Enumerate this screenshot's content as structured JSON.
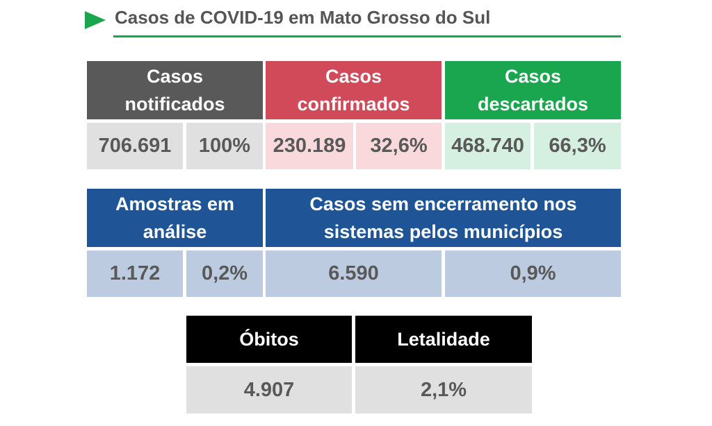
{
  "title": "Casos de COVID-19 em Mato Grosso do Sul",
  "sections": [
    {
      "headers": [
        "Casos notificados",
        "Casos confirmados",
        "Casos descartados"
      ],
      "values": [
        "706.691",
        "100%",
        "230.189",
        "32,6%",
        "468.740",
        "66,3%"
      ]
    },
    {
      "headers": [
        "Amostras em análise",
        "Casos sem encerramento nos sistemas pelos municípios"
      ],
      "values": [
        "1.172",
        "0,2%",
        "6.590",
        "0,9%"
      ]
    },
    {
      "headers": [
        "Óbitos",
        "Letalidade"
      ],
      "values": [
        "4.907",
        "2,1%"
      ]
    }
  ]
}
